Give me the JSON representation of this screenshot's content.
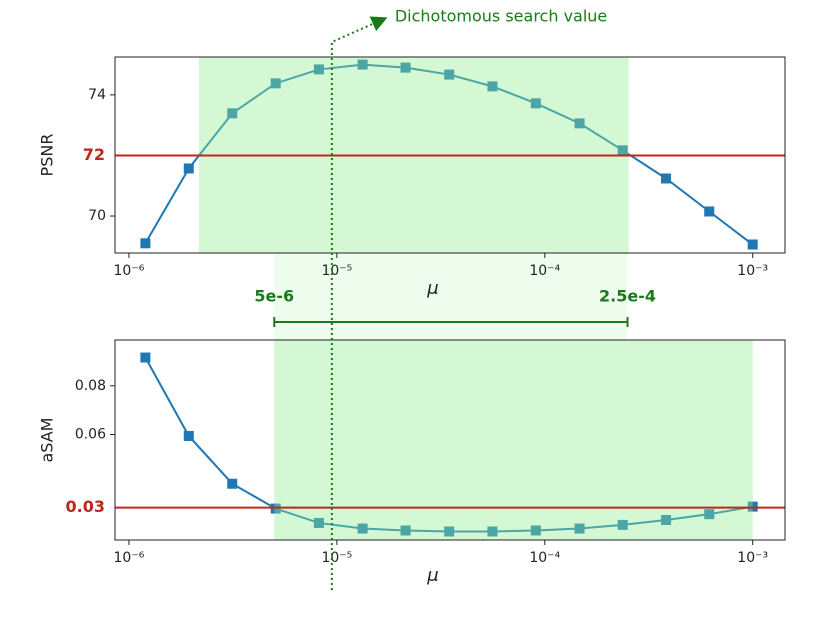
{
  "annotation": {
    "text": "Dichotomous search value",
    "x": 9.46e-06,
    "color": "#1a7a1a"
  },
  "range": {
    "from": {
      "value": 5e-06,
      "label": "5e-6"
    },
    "to": {
      "value": 0.00025,
      "label": "2.5e-4"
    },
    "color": "#1a7a1a"
  },
  "chart_data": [
    {
      "type": "line",
      "ylabel": "PSNR",
      "xlabel": "μ",
      "xscale": "log",
      "xlim": [
        8.57e-07,
        0.00143
      ],
      "xticks": [
        {
          "value": 1e-06,
          "label": "10⁻⁶"
        },
        {
          "value": 1e-05,
          "label": "10⁻⁵"
        },
        {
          "value": 0.0001,
          "label": "10⁻⁴"
        },
        {
          "value": 0.001,
          "label": "10⁻³"
        }
      ],
      "ylim": [
        68.78,
        75.25
      ],
      "yticks": [
        70,
        74
      ],
      "x": [
        1.2e-06,
        1.94e-06,
        3.14e-06,
        5.08e-06,
        8.2e-06,
        1.33e-05,
        2.14e-05,
        3.47e-05,
        5.6e-05,
        9.06e-05,
        0.000147,
        0.000237,
        0.000383,
        0.000618,
        0.001
      ],
      "series": [
        {
          "color": "#1f77b4",
          "values": [
            69.1,
            71.57,
            73.39,
            74.38,
            74.84,
            75.0,
            74.9,
            74.67,
            74.28,
            73.72,
            73.06,
            72.17,
            71.24,
            70.15,
            69.06
          ]
        }
      ],
      "shaded": {
        "x": [
          2.17e-06,
          0.000253
        ],
        "color": "#90ee90"
      },
      "threshold": {
        "value": 72,
        "color": "#c0261a"
      }
    },
    {
      "type": "line",
      "ylabel": "aSAM",
      "xlabel": "μ",
      "xscale": "log",
      "xlim": [
        8.57e-07,
        0.00143
      ],
      "xticks": [
        {
          "value": 1e-06,
          "label": "10⁻⁶"
        },
        {
          "value": 1e-05,
          "label": "10⁻⁵"
        },
        {
          "value": 0.0001,
          "label": "10⁻⁴"
        },
        {
          "value": 0.001,
          "label": "10⁻³"
        }
      ],
      "ylim": [
        0.0167,
        0.0988
      ],
      "yticks": [
        0.06,
        0.08
      ],
      "x": [
        1.2e-06,
        1.94e-06,
        3.14e-06,
        5.08e-06,
        8.2e-06,
        1.33e-05,
        2.14e-05,
        3.47e-05,
        5.6e-05,
        9.06e-05,
        0.000147,
        0.000237,
        0.000383,
        0.000618,
        0.001
      ],
      "series": [
        {
          "color": "#1f77b4",
          "values": [
            0.0916,
            0.0594,
            0.0398,
            0.0296,
            0.0237,
            0.0214,
            0.0206,
            0.0202,
            0.0202,
            0.0206,
            0.0214,
            0.0229,
            0.0249,
            0.0273,
            0.0304
          ]
        }
      ],
      "shaded": {
        "x": [
          5e-06,
          0.001
        ],
        "color": "#90ee90"
      },
      "threshold": {
        "value": 0.03,
        "color": "#c0261a"
      }
    }
  ]
}
